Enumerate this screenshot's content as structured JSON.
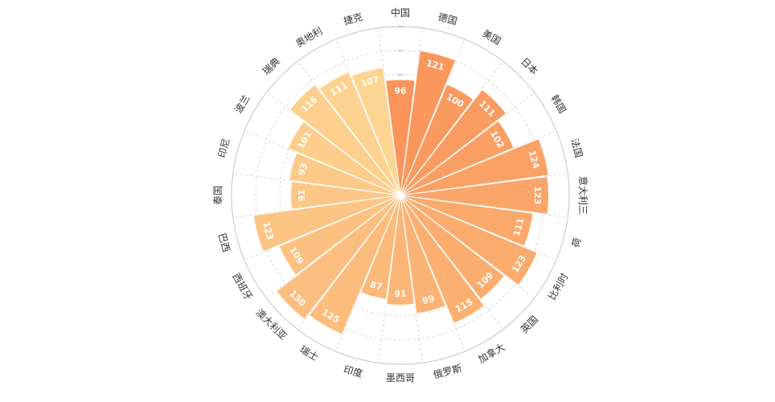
{
  "chart_data": {
    "type": "bar",
    "polar": true,
    "categories": [
      "中国",
      "德国",
      "美国",
      "日本",
      "韩国",
      "法国",
      "意大利三",
      "荷",
      "比利时",
      "英国",
      "加拿大",
      "俄罗斯",
      "墨西哥",
      "印度",
      "瑞士",
      "澳大利亚",
      "西班牙",
      "巴西",
      "泰国",
      "印尼",
      "波兰",
      "瑞典",
      "奥地利",
      "捷克"
    ],
    "values": [
      96,
      121,
      100,
      111,
      102,
      124,
      123,
      111,
      123,
      109,
      115,
      99,
      91,
      87,
      125,
      130,
      109,
      123,
      91,
      93,
      101,
      116,
      111,
      107
    ],
    "rlim": [
      0,
      140
    ],
    "radial_ticks": [
      0,
      20,
      40,
      60,
      80,
      100,
      120,
      140
    ],
    "color_start": "#f9945a",
    "color_end": "#fdd592",
    "grid": true,
    "title": "",
    "legend": "none"
  }
}
